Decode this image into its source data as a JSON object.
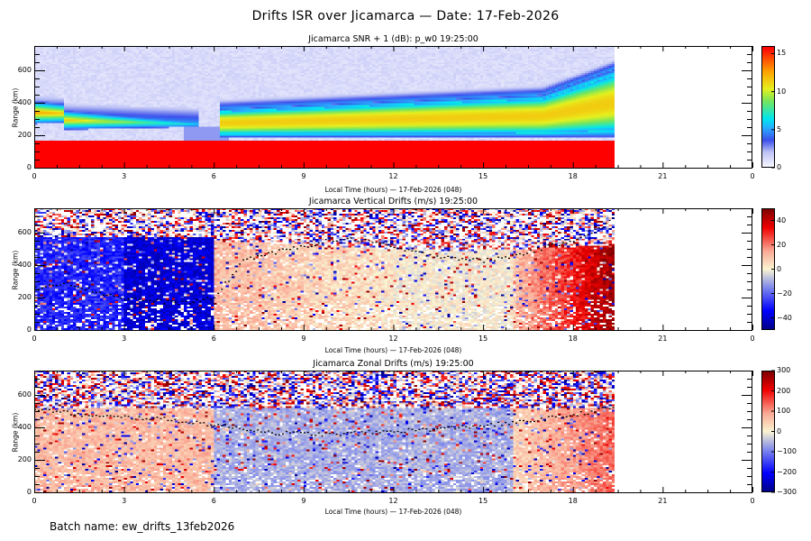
{
  "page": {
    "main_title": "Drifts ISR over Jicamarca — Date: 17-Feb-2026",
    "batch_label": "Batch name: ew_drifts_13feb2026"
  },
  "chart_data": [
    {
      "type": "heatmap",
      "id": "snr",
      "title": "Jicamarca SNR + 1 (dB): p_w0 19:25:00",
      "xlabel": "Local Time (hours) — 17-Feb-2026 (048)",
      "ylabel": "Range (km)",
      "xlim": [
        0,
        24
      ],
      "ylim": [
        0,
        750
      ],
      "xticks": [
        0,
        3,
        6,
        9,
        12,
        15,
        18,
        21,
        0
      ],
      "yticks": [
        0,
        200,
        400,
        600,
        800
      ],
      "data_end_hour": 19.42,
      "colorbar": {
        "range": [
          0,
          16
        ],
        "ticks": [
          0,
          5,
          10,
          15
        ],
        "colormap": "white-blue-cyan-green-yellow-red"
      },
      "features": [
        {
          "description": "saturated low-altitude echo",
          "range_km": [
            0,
            170
          ],
          "value_db": 16
        },
        {
          "description": "night F-layer band",
          "time_h": [
            0,
            5
          ],
          "range_km": [
            200,
            370
          ],
          "peak_value_db": 10
        },
        {
          "description": "day F-layer band",
          "time_h": [
            6,
            19.4
          ],
          "range_km": [
            180,
            520
          ],
          "peak_value_db": 11
        },
        {
          "description": "background noise",
          "range_km": [
            400,
            750
          ],
          "value_db": 1
        }
      ]
    },
    {
      "type": "heatmap",
      "id": "vertical",
      "title": "Jicamarca Vertical Drifts (m/s) 19:25:00",
      "xlabel": "Local Time (hours) — 17-Feb-2026 (048)",
      "ylabel": "Range (km)",
      "xlim": [
        0,
        24
      ],
      "ylim": [
        0,
        750
      ],
      "xticks": [
        0,
        3,
        6,
        9,
        12,
        15,
        18,
        21,
        0
      ],
      "yticks": [
        0,
        200,
        400,
        600,
        800
      ],
      "data_end_hour": 19.42,
      "colorbar": {
        "range": [
          -50,
          50
        ],
        "ticks": [
          -40,
          -20,
          0,
          20,
          40
        ],
        "colormap": "blue-white-red"
      },
      "features": [
        {
          "description": "night downward drift",
          "time_h": [
            0,
            6
          ],
          "value_ms": -35
        },
        {
          "description": "daytime upward drift",
          "time_h": [
            6,
            12
          ],
          "value_ms": 12
        },
        {
          "description": "midday near zero",
          "time_h": [
            12,
            16
          ],
          "value_ms": 0
        },
        {
          "description": "pre-reversal enhancement",
          "time_h": [
            17,
            19.4
          ],
          "value_ms": 45
        }
      ],
      "trace_km": {
        "hours": [
          0,
          1,
          2,
          3,
          4,
          5,
          6,
          7,
          8,
          9,
          10,
          11,
          12,
          13,
          14,
          15,
          16,
          17,
          18,
          19,
          19.4
        ],
        "values": [
          260,
          300,
          240,
          200,
          180,
          170,
          200,
          440,
          480,
          520,
          560,
          560,
          510,
          470,
          450,
          430,
          460,
          510,
          560,
          640,
          700
        ]
      }
    },
    {
      "type": "heatmap",
      "id": "zonal",
      "title": "Jicamarca Zonal Drifts (m/s) 19:25:00",
      "xlabel": "Local Time (hours) — 17-Feb-2026 (048)",
      "ylabel": "Range (km)",
      "xlim": [
        0,
        24
      ],
      "ylim": [
        0,
        750
      ],
      "xticks": [
        0,
        3,
        6,
        9,
        12,
        15,
        18,
        21,
        0
      ],
      "yticks": [
        0,
        200,
        400,
        600,
        800
      ],
      "data_end_hour": 19.42,
      "colorbar": {
        "range": [
          -300,
          300
        ],
        "ticks": [
          -300,
          -200,
          -100,
          0,
          100,
          200,
          300
        ],
        "colormap": "blue-white-red"
      },
      "features": [
        {
          "description": "night eastward",
          "time_h": [
            0,
            6
          ],
          "value_ms": 80
        },
        {
          "description": "day westward",
          "time_h": [
            6,
            16
          ],
          "value_ms": -60
        },
        {
          "description": "evening eastward",
          "time_h": [
            17,
            19.4
          ],
          "value_ms": 100
        }
      ],
      "trace_km": {
        "hours": [
          0,
          2,
          4,
          6,
          8,
          10,
          12,
          14,
          16,
          18,
          19.4
        ],
        "values": [
          520,
          470,
          460,
          420,
          370,
          360,
          380,
          400,
          430,
          480,
          530
        ]
      }
    }
  ]
}
